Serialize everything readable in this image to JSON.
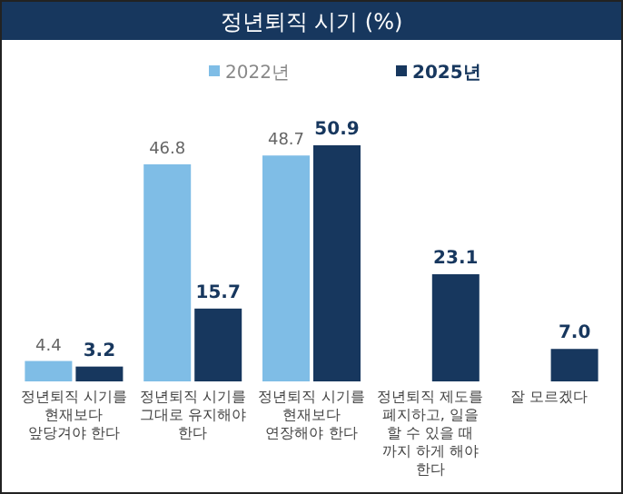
{
  "chart_data": {
    "type": "bar",
    "title": "정년퇴직 시기 (%)",
    "categories": [
      "정년퇴직 시기를 현재보다 앞당겨야 한다",
      "정년퇴직 시기를 그대로 유지해야 한다",
      "정년퇴직 시기를 현재보다 연장해야 한다",
      "정년퇴직 제도를 폐지하고, 일을 할 수 있을 때 까지 하게 해야 한다",
      "잘 모르겠다"
    ],
    "series": [
      {
        "name": "2022년",
        "color": "#7fbde6",
        "values": [
          4.4,
          46.8,
          48.7,
          null,
          null
        ],
        "value_labels": [
          "4.4",
          "46.8",
          "48.7",
          null,
          null
        ]
      },
      {
        "name": "2025년",
        "color": "#17375e",
        "values": [
          3.2,
          15.7,
          50.9,
          23.1,
          7.0
        ],
        "value_labels": [
          "3.2",
          "15.7",
          "50.9",
          "23.1",
          "7.0"
        ]
      }
    ],
    "legend": "top"
  }
}
